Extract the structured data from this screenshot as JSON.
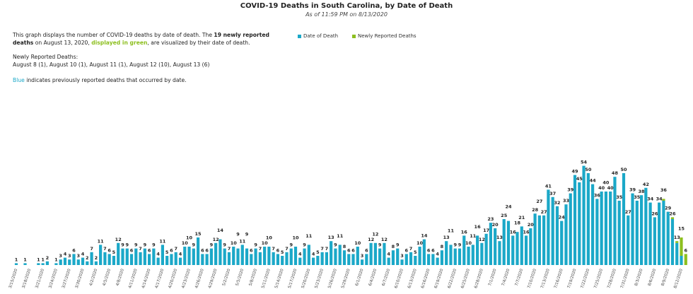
{
  "header": {
    "title": "COVID-19 Deaths in South Carolina, by Date of Death",
    "subtitle": "As of 11:59 PM on 8/13/2020"
  },
  "description": {
    "p1_a": "This graph displays the number of COVID-19 deaths by date of death. The ",
    "p1_bold": "19 newly reported deaths",
    "p1_b": " on August 13, 2020, ",
    "p1_green": "displayed in green",
    "p1_c": ", are visualized by their date of death.",
    "p2_heading": "Newly Reported Deaths:",
    "p2_list": "August 8 (1), August 10 (1), August 11 (1), August 12 (10), August 13 (6)",
    "p3_blue": "Blue",
    "p3_rest": " indicates previously reported deaths that occurred by date."
  },
  "colors": {
    "blue": "#1ba8c8",
    "green": "#8dbf1f"
  },
  "chart_data": {
    "type": "bar",
    "stacked": true,
    "title": "COVID-19 Deaths in South Carolina, by Date of Death",
    "subtitle": "As of 11:59 PM on 8/13/2020",
    "legend_position": "top",
    "grid": false,
    "categories": [
      "3/15/2020",
      "3/16/2020",
      "3/17/2020",
      "3/18/2020",
      "3/19/2020",
      "3/20/2020",
      "3/21/2020",
      "3/22/2020",
      "3/23/2020",
      "3/24/2020",
      "3/25/2020",
      "3/26/2020",
      "3/27/2020",
      "3/28/2020",
      "3/29/2020",
      "3/30/2020",
      "3/31/2020",
      "4/1/2020",
      "4/2/2020",
      "4/3/2020",
      "4/4/2020",
      "4/5/2020",
      "4/6/2020",
      "4/7/2020",
      "4/8/2020",
      "4/9/2020",
      "4/10/2020",
      "4/11/2020",
      "4/12/2020",
      "4/13/2020",
      "4/14/2020",
      "4/15/2020",
      "4/16/2020",
      "4/17/2020",
      "4/18/2020",
      "4/19/2020",
      "4/20/2020",
      "4/21/2020",
      "4/22/2020",
      "4/23/2020",
      "4/24/2020",
      "4/25/2020",
      "4/26/2020",
      "4/27/2020",
      "4/28/2020",
      "4/29/2020",
      "4/30/2020",
      "5/1/2020",
      "5/2/2020",
      "5/3/2020",
      "5/4/2020",
      "5/5/2020",
      "5/6/2020",
      "5/7/2020",
      "5/8/2020",
      "5/9/2020",
      "5/10/2020",
      "5/11/2020",
      "5/12/2020",
      "5/13/2020",
      "5/14/2020",
      "5/15/2020",
      "5/16/2020",
      "5/17/2020",
      "5/18/2020",
      "5/19/2020",
      "5/20/2020",
      "5/21/2020",
      "5/22/2020",
      "5/23/2020",
      "5/24/2020",
      "5/25/2020",
      "5/26/2020",
      "5/27/2020",
      "5/28/2020",
      "5/29/2020",
      "5/30/2020",
      "5/31/2020",
      "6/1/2020",
      "6/2/2020",
      "6/3/2020",
      "6/4/2020",
      "6/5/2020",
      "6/6/2020",
      "6/7/2020",
      "6/8/2020",
      "6/9/2020",
      "6/10/2020",
      "6/11/2020",
      "6/12/2020",
      "6/13/2020",
      "6/14/2020",
      "6/15/2020",
      "6/16/2020",
      "6/17/2020",
      "6/18/2020",
      "6/19/2020",
      "6/20/2020",
      "6/21/2020",
      "6/22/2020",
      "6/23/2020",
      "6/24/2020",
      "6/25/2020",
      "6/26/2020",
      "6/27/2020",
      "6/28/2020",
      "6/29/2020",
      "6/30/2020",
      "7/1/2020",
      "7/2/2020",
      "7/3/2020",
      "7/4/2020",
      "7/5/2020",
      "7/6/2020",
      "7/7/2020",
      "7/8/2020",
      "7/9/2020",
      "7/10/2020",
      "7/11/2020",
      "7/12/2020",
      "7/13/2020",
      "7/14/2020",
      "7/15/2020",
      "7/16/2020",
      "7/17/2020",
      "7/18/2020",
      "7/19/2020",
      "7/20/2020",
      "7/21/2020",
      "7/22/2020",
      "7/23/2020",
      "7/24/2020",
      "7/25/2020",
      "7/26/2020",
      "7/27/2020",
      "7/28/2020",
      "7/29/2020",
      "7/30/2020",
      "7/31/2020",
      "8/1/2020",
      "8/2/2020",
      "8/3/2020",
      "8/4/2020",
      "8/5/2020",
      "8/6/2020",
      "8/7/2020",
      "8/8/2020",
      "8/9/2020",
      "8/10/2020",
      "8/11/2020",
      "8/12/2020",
      "8/13/2020"
    ],
    "series": [
      {
        "name": "Date of Death",
        "color": "#1ba8c8",
        "values": [
          1,
          0,
          1,
          0,
          0,
          1,
          1,
          2,
          0,
          1,
          3,
          4,
          3,
          6,
          3,
          4,
          2,
          7,
          2,
          11,
          7,
          6,
          5,
          12,
          9,
          9,
          6,
          9,
          7,
          9,
          6,
          9,
          4,
          11,
          5,
          6,
          7,
          4,
          10,
          10,
          9,
          15,
          6,
          6,
          9,
          12,
          14,
          9,
          7,
          10,
          9,
          11,
          9,
          6,
          9,
          7,
          10,
          10,
          7,
          6,
          5,
          7,
          9,
          10,
          4,
          9,
          11,
          4,
          5,
          7,
          7,
          13,
          9,
          11,
          8,
          6,
          6,
          10,
          3,
          6,
          12,
          12,
          9,
          12,
          4,
          8,
          9,
          3,
          6,
          7,
          5,
          10,
          14,
          6,
          6,
          4,
          8,
          13,
          11,
          9,
          9,
          16,
          10,
          11,
          16,
          12,
          17,
          23,
          20,
          13,
          25,
          24,
          16,
          18,
          21,
          16,
          20,
          28,
          27,
          27,
          41,
          37,
          32,
          24,
          33,
          39,
          49,
          45,
          54,
          50,
          44,
          36,
          40,
          40,
          40,
          48,
          35,
          50,
          27,
          39,
          35,
          38,
          42,
          34,
          26,
          34,
          35,
          29,
          25,
          12,
          5,
          0
        ]
      },
      {
        "name": "Newly Reported Deaths",
        "color": "#8dbf1f",
        "values": [
          0,
          0,
          0,
          0,
          0,
          0,
          0,
          0,
          0,
          0,
          0,
          0,
          0,
          0,
          0,
          0,
          0,
          0,
          0,
          0,
          0,
          0,
          0,
          0,
          0,
          0,
          0,
          0,
          0,
          0,
          0,
          0,
          0,
          0,
          0,
          0,
          0,
          0,
          0,
          0,
          0,
          0,
          0,
          0,
          0,
          0,
          0,
          0,
          0,
          0,
          0,
          0,
          0,
          0,
          0,
          0,
          0,
          0,
          0,
          0,
          0,
          0,
          0,
          0,
          0,
          0,
          0,
          0,
          0,
          0,
          0,
          0,
          0,
          0,
          0,
          0,
          0,
          0,
          0,
          0,
          0,
          0,
          0,
          0,
          0,
          0,
          0,
          0,
          0,
          0,
          0,
          0,
          0,
          0,
          0,
          0,
          0,
          0,
          0,
          0,
          0,
          0,
          0,
          0,
          0,
          0,
          0,
          0,
          0,
          0,
          0,
          0,
          0,
          0,
          0,
          0,
          0,
          0,
          0,
          0,
          0,
          0,
          0,
          0,
          0,
          0,
          0,
          0,
          0,
          0,
          0,
          0,
          0,
          0,
          0,
          0,
          0,
          0,
          0,
          0,
          0,
          0,
          0,
          0,
          0,
          0,
          1,
          0,
          1,
          1,
          10,
          6
        ]
      }
    ],
    "tick_every": 3
  }
}
